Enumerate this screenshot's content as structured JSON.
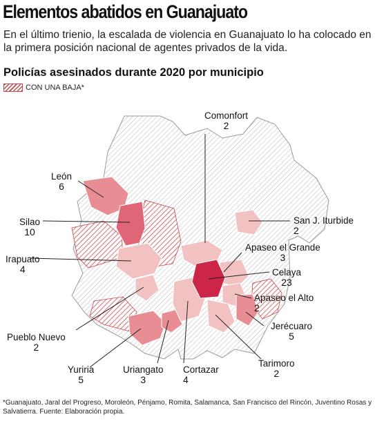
{
  "title": "Elementos abatidos en Guanajuato",
  "lede": "En el último trienio, la escalada de violencia en Guanajuato lo ha colocado en la primera posición nacional de agentes privados de la vida.",
  "subtitle": "Policías asesinados durante 2020 por municipio",
  "legend": {
    "label": "CON UNA BAJA*"
  },
  "municipios": [
    {
      "name": "Comonfort",
      "value": "2"
    },
    {
      "name": "León",
      "value": "6"
    },
    {
      "name": "Silao",
      "value": "10"
    },
    {
      "name": "San J. Iturbide",
      "value": "2"
    },
    {
      "name": "Apaseo el Grande",
      "value": "3"
    },
    {
      "name": "Irapuato",
      "value": "4"
    },
    {
      "name": "Celaya",
      "value": "23"
    },
    {
      "name": "Apaseo el Alto",
      "value": "2"
    },
    {
      "name": "Jerécuaro",
      "value": "5"
    },
    {
      "name": "Pueblo Nuevo",
      "value": "2"
    },
    {
      "name": "Tarimoro",
      "value": "2"
    },
    {
      "name": "Yuriria",
      "value": "5"
    },
    {
      "name": "Uriangato",
      "value": "3"
    },
    {
      "name": "Cortazar",
      "value": "4"
    }
  ],
  "colors": {
    "c1": "#f2c1c1",
    "c2": "#e88d93",
    "c3": "#de6677",
    "c4": "#cc2548",
    "hatch": "#c9484f",
    "none": "#bfbfbf"
  },
  "footer": "*Guanajuato, Jaral del Progreso, Moroleón, Pénjamo, Romita, Salamanca, San Francisco del Rincón, Juventino Rosas y Salvatierra. Fuente: Elaboración propia."
}
